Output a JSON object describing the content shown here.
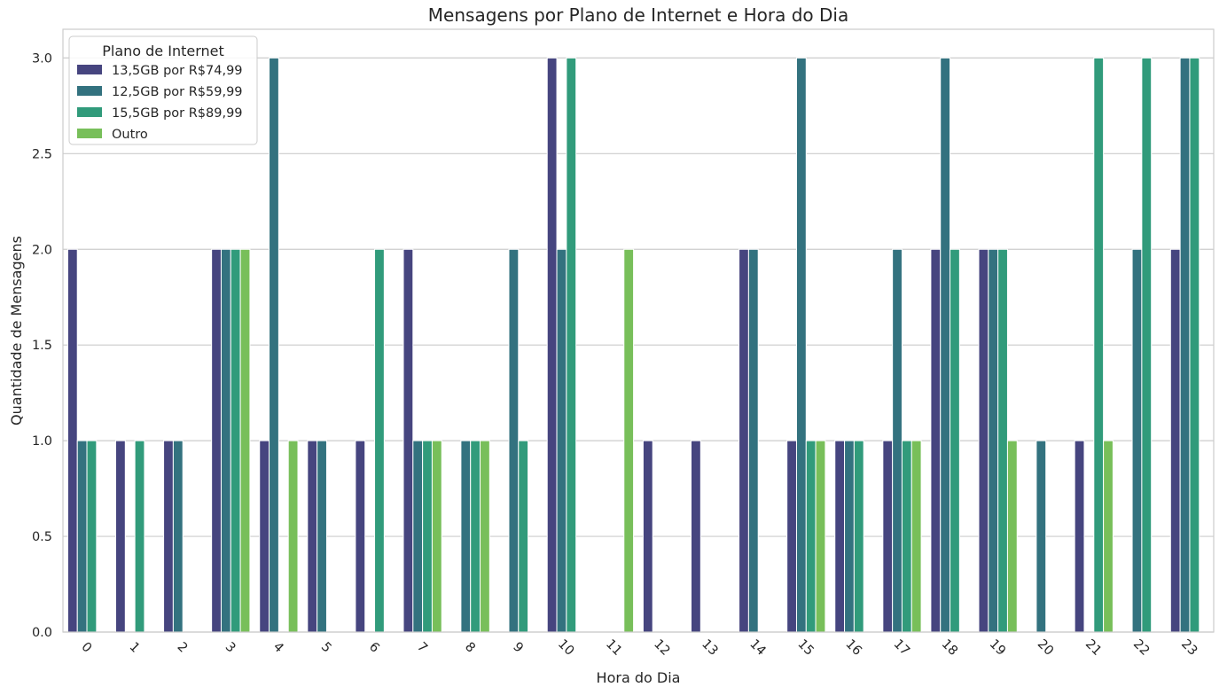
{
  "chart_data": {
    "type": "bar",
    "title": "Mensagens por Plano de Internet e Hora do Dia",
    "xlabel": "Hora do Dia",
    "ylabel": "Quantidade de Mensagens",
    "categories": [
      "0",
      "1",
      "2",
      "3",
      "4",
      "5",
      "6",
      "7",
      "8",
      "9",
      "10",
      "11",
      "12",
      "13",
      "14",
      "15",
      "16",
      "17",
      "18",
      "19",
      "20",
      "21",
      "22",
      "23"
    ],
    "ylim": [
      0,
      3.15
    ],
    "yticks": [
      "0.0",
      "0.5",
      "1.0",
      "1.5",
      "2.0",
      "2.5",
      "3.0"
    ],
    "ytick_values": [
      0,
      0.5,
      1.0,
      1.5,
      2.0,
      2.5,
      3.0
    ],
    "grid": true,
    "legend": {
      "title": "Plano de Internet",
      "placement": "top-left"
    },
    "series": [
      {
        "name": "13,5GB por R$74,99",
        "color": "#46457f",
        "values": [
          2,
          1,
          1,
          2,
          1,
          1,
          1,
          2,
          0,
          0,
          3,
          0,
          1,
          1,
          2,
          1,
          1,
          1,
          2,
          2,
          0,
          1,
          0,
          2
        ]
      },
      {
        "name": "12,5GB por R$59,99",
        "color": "#33727f",
        "values": [
          1,
          0,
          1,
          2,
          3,
          1,
          0,
          1,
          1,
          2,
          2,
          0,
          0,
          0,
          2,
          3,
          1,
          2,
          3,
          2,
          1,
          0,
          2,
          3
        ]
      },
      {
        "name": "15,5GB por R$89,99",
        "color": "#319b7b",
        "values": [
          1,
          1,
          0,
          2,
          0,
          0,
          2,
          1,
          1,
          1,
          3,
          0,
          0,
          0,
          0,
          1,
          1,
          1,
          2,
          2,
          0,
          3,
          3,
          3
        ]
      },
      {
        "name": "Outro",
        "color": "#78bf5a",
        "values": [
          0,
          0,
          0,
          2,
          1,
          0,
          0,
          1,
          1,
          0,
          0,
          2,
          0,
          0,
          0,
          1,
          0,
          1,
          0,
          1,
          0,
          1,
          0,
          0
        ]
      }
    ]
  }
}
